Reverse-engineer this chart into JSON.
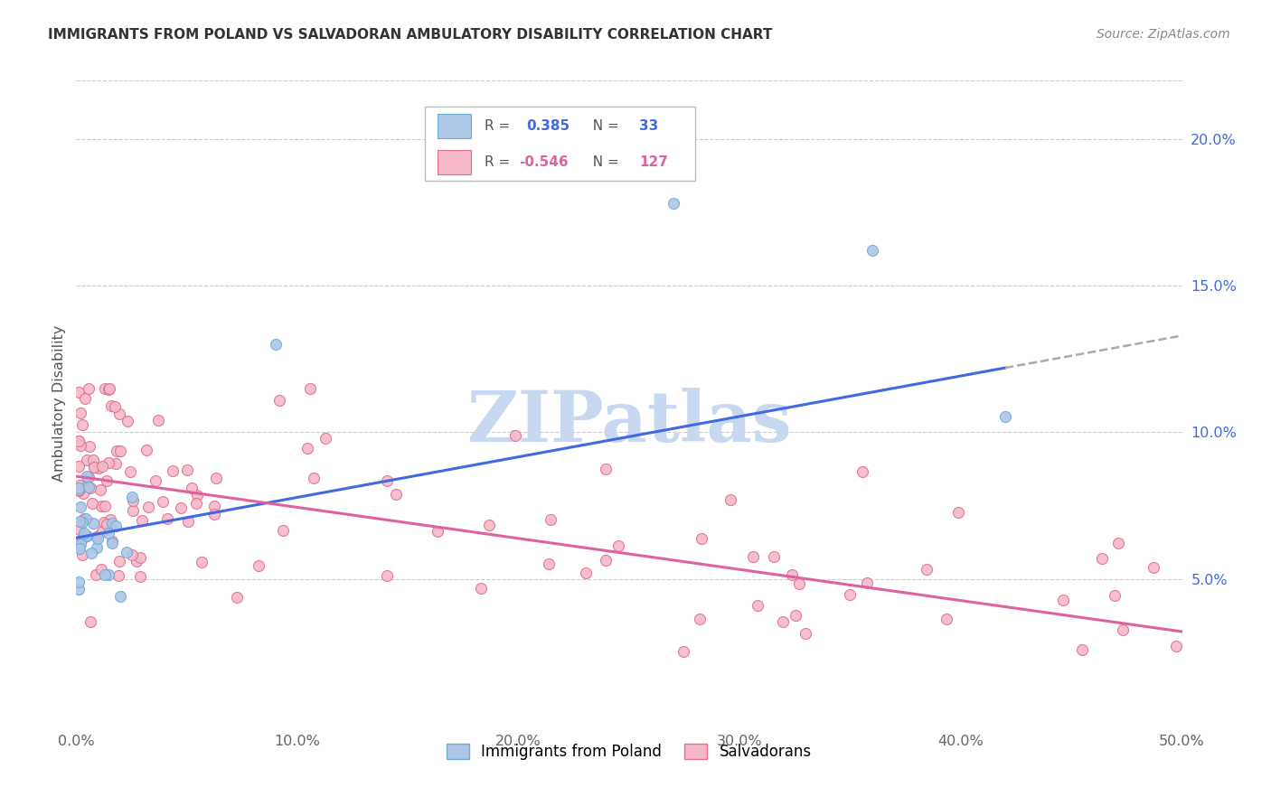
{
  "title": "IMMIGRANTS FROM POLAND VS SALVADORAN AMBULATORY DISABILITY CORRELATION CHART",
  "source": "Source: ZipAtlas.com",
  "ylabel": "Ambulatory Disability",
  "xlim": [
    0.0,
    0.5
  ],
  "ylim": [
    0.0,
    0.22
  ],
  "xtick_labels": [
    "0.0%",
    "10.0%",
    "20.0%",
    "30.0%",
    "40.0%",
    "50.0%"
  ],
  "xtick_vals": [
    0.0,
    0.1,
    0.2,
    0.3,
    0.4,
    0.5
  ],
  "ytick_labels_right": [
    "5.0%",
    "10.0%",
    "15.0%",
    "20.0%"
  ],
  "ytick_vals_right": [
    0.05,
    0.1,
    0.15,
    0.2
  ],
  "poland_color": "#aec6e8",
  "poland_edge_color": "#6baed6",
  "salvador_color": "#f4b8c8",
  "salvador_edge_color": "#e07090",
  "poland_R": 0.385,
  "poland_N": 33,
  "salvador_R": -0.546,
  "salvador_N": 127,
  "watermark": "ZIPatlas",
  "watermark_color": "#c8d8f0",
  "trend_poland_color": "#4169e1",
  "trend_salvador_color": "#e060a0",
  "trend_dashed_color": "#aaaaaa",
  "background_color": "#ffffff",
  "trend_pol_x0": 0.0,
  "trend_pol_y0": 0.064,
  "trend_pol_x1": 0.42,
  "trend_pol_y1": 0.122,
  "trend_dash_x0": 0.42,
  "trend_dash_y0": 0.122,
  "trend_dash_x1": 0.5,
  "trend_dash_y1": 0.133,
  "trend_sal_x0": 0.0,
  "trend_sal_y0": 0.085,
  "trend_sal_x1": 0.5,
  "trend_sal_y1": 0.032
}
